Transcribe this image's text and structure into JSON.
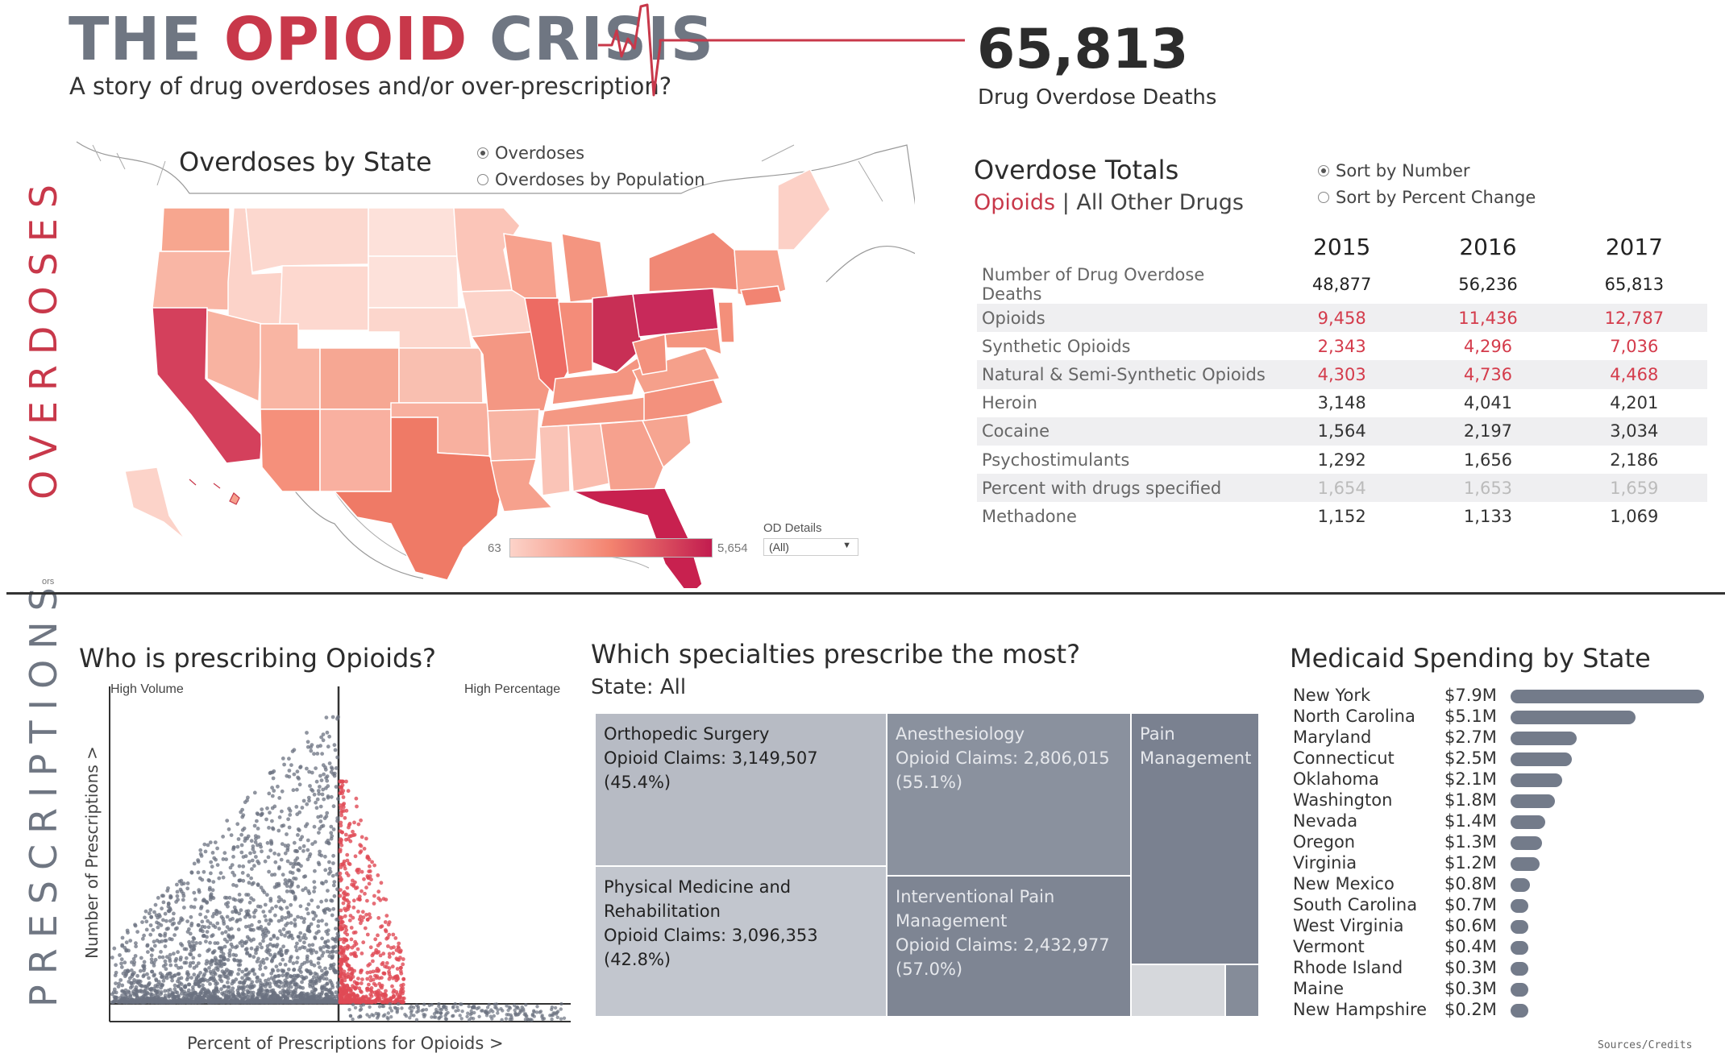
{
  "header": {
    "title_part1": "THE ",
    "title_part2": "OPIOID",
    "title_part3": " CRISIS",
    "subtitle": "A story of drug overdoses and/or over-prescription?",
    "kpi_value": "65,813",
    "kpi_label": "Drug Overdose Deaths"
  },
  "section_labels": {
    "overdoses": "OVERDOSES",
    "prescriptions": "PRESCRIPTIONS"
  },
  "map": {
    "title": "Overdoses by State",
    "options": [
      "Overdoses",
      "Overdoses by Population"
    ],
    "selected_option": "Overdoses",
    "legend_min": "63",
    "legend_max": "5,654",
    "filter_label": "OD Details",
    "filter_value": "(All)",
    "corner_text": "ors",
    "colors": {
      "low": "#fcd3c9",
      "mid": "#f3836f",
      "high": "#c21c4f"
    }
  },
  "totals": {
    "title": "Overdose Totals",
    "tab_selected": "Opioids",
    "tab_separator": " | ",
    "tab_other": "All Other Drugs",
    "sort_options": [
      "Sort by Number",
      "Sort by Percent Change"
    ],
    "sort_selected": "Sort by Number",
    "years": [
      "2015",
      "2016",
      "2017"
    ],
    "rows": [
      {
        "label": "Number of Drug Overdose Deaths",
        "values": [
          "48,877",
          "56,236",
          "65,813"
        ],
        "style": "dark"
      },
      {
        "label": "Opioids",
        "values": [
          "9,458",
          "11,436",
          "12,787"
        ],
        "style": "red"
      },
      {
        "label": "Synthetic Opioids",
        "values": [
          "2,343",
          "4,296",
          "7,036"
        ],
        "style": "red"
      },
      {
        "label": "Natural & Semi-Synthetic Opioids",
        "values": [
          "4,303",
          "4,736",
          "4,468"
        ],
        "style": "red"
      },
      {
        "label": "Heroin",
        "values": [
          "3,148",
          "4,041",
          "4,201"
        ],
        "style": "normal"
      },
      {
        "label": "Cocaine",
        "values": [
          "1,564",
          "2,197",
          "3,034"
        ],
        "style": "normal"
      },
      {
        "label": "Psychostimulants",
        "values": [
          "1,292",
          "1,656",
          "2,186"
        ],
        "style": "normal"
      },
      {
        "label": "Percent with drugs specified",
        "values": [
          "1,654",
          "1,653",
          "1,659"
        ],
        "style": "faint"
      },
      {
        "label": "Methadone",
        "values": [
          "1,152",
          "1,133",
          "1,069"
        ],
        "style": "normal"
      }
    ]
  },
  "scatter": {
    "title": "Who is prescribing Opioids?",
    "quad_left": "High Volume",
    "quad_right": "High Percentage",
    "xlabel": "Percent of Prescriptions for Opioids >",
    "ylabel": "Number of Prescriptions >",
    "colors": {
      "normal": "#6b7280",
      "high": "#e04a55"
    }
  },
  "treemap": {
    "title": "Which specialties prescribe the most?",
    "subtitle": "State: All",
    "cells": [
      {
        "name": "Orthopedic Surgery",
        "claims": "Opioid Claims: 3,149,507",
        "pct": "(45.4%)"
      },
      {
        "name": "Physical Medicine and Rehabilitation",
        "claims": "Opioid Claims: 3,096,353",
        "pct": "(42.8%)"
      },
      {
        "name": "Anesthesiology",
        "claims": "Opioid Claims: 2,806,015",
        "pct": "(55.1%)"
      },
      {
        "name": "Interventional Pain Management",
        "claims": "Opioid Claims: 2,432,977",
        "pct": "(57.0%)"
      },
      {
        "name": "Pain Management",
        "claims": "",
        "pct": ""
      }
    ]
  },
  "medicaid": {
    "title": "Medicaid Spending by State",
    "footer": "Sources/Credits"
  },
  "chart_data": [
    {
      "type": "bar",
      "title": "Medicaid Spending by State",
      "categories": [
        "New York",
        "North Carolina",
        "Maryland",
        "Connecticut",
        "Oklahoma",
        "Washington",
        "Nevada",
        "Oregon",
        "Virginia",
        "New Mexico",
        "South Carolina",
        "West Virginia",
        "Vermont",
        "Rhode Island",
        "Maine",
        "New Hampshire"
      ],
      "labels": [
        "$7.9M",
        "$5.1M",
        "$2.7M",
        "$2.5M",
        "$2.1M",
        "$1.8M",
        "$1.4M",
        "$1.3M",
        "$1.2M",
        "$0.8M",
        "$0.7M",
        "$0.6M",
        "$0.4M",
        "$0.3M",
        "$0.3M",
        "$0.2M"
      ],
      "values": [
        7.9,
        5.1,
        2.7,
        2.5,
        2.1,
        1.8,
        1.4,
        1.3,
        1.2,
        0.8,
        0.7,
        0.6,
        0.4,
        0.3,
        0.3,
        0.2
      ],
      "unit": "$M"
    },
    {
      "type": "table",
      "title": "Overdose Totals",
      "columns": [
        "2015",
        "2016",
        "2017"
      ],
      "rows": [
        "Number of Drug Overdose Deaths",
        "Opioids",
        "Synthetic Opioids",
        "Natural & Semi-Synthetic Opioids",
        "Heroin",
        "Cocaine",
        "Psychostimulants",
        "Percent with drugs specified",
        "Methadone"
      ],
      "values": [
        [
          48877,
          56236,
          65813
        ],
        [
          9458,
          11436,
          12787
        ],
        [
          2343,
          4296,
          7036
        ],
        [
          4303,
          4736,
          4468
        ],
        [
          3148,
          4041,
          4201
        ],
        [
          1564,
          2197,
          3034
        ],
        [
          1292,
          1656,
          2186
        ],
        [
          1654,
          1653,
          1659
        ],
        [
          1152,
          1133,
          1069
        ]
      ]
    },
    {
      "type": "heatmap",
      "title": "Overdoses by State",
      "color_range": [
        63,
        5654
      ],
      "highlighted_states": [
        "California",
        "Florida",
        "Ohio",
        "Pennsylvania"
      ]
    },
    {
      "type": "scatter",
      "title": "Who is prescribing Opioids?",
      "xlabel": "Percent of Prescriptions for Opioids >",
      "ylabel": "Number of Prescriptions >"
    }
  ]
}
